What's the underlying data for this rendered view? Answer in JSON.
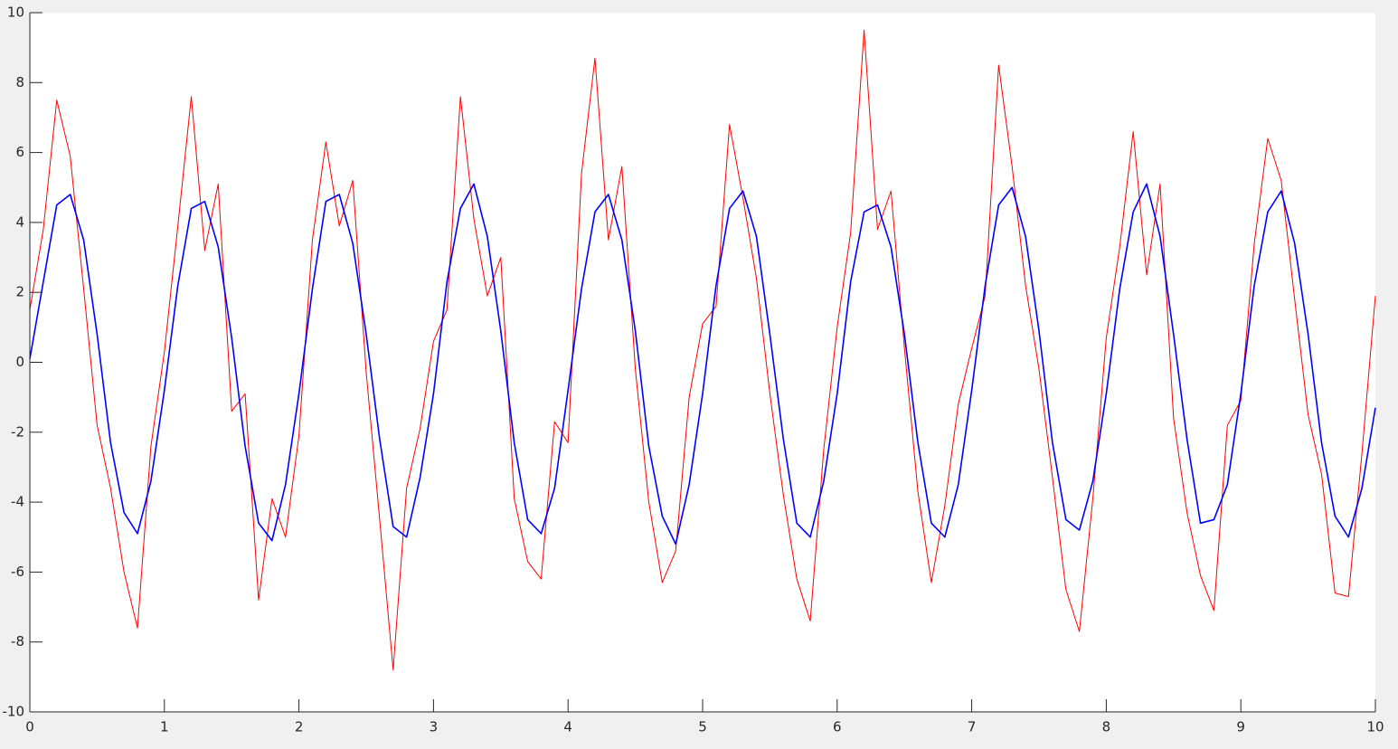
{
  "chart_data": {
    "type": "line",
    "x": [
      0,
      0.1,
      0.2,
      0.3,
      0.4,
      0.5,
      0.6,
      0.7,
      0.8,
      0.9,
      1,
      1.1,
      1.2,
      1.3,
      1.4,
      1.5,
      1.6,
      1.7,
      1.8,
      1.9,
      2,
      2.1,
      2.2,
      2.3,
      2.4,
      2.5,
      2.6,
      2.7,
      2.8,
      2.9,
      3,
      3.1,
      3.2,
      3.3,
      3.4,
      3.5,
      3.6,
      3.7,
      3.8,
      3.9,
      4,
      4.1,
      4.2,
      4.3,
      4.4,
      4.5,
      4.6,
      4.7,
      4.8,
      4.9,
      5,
      5.1,
      5.2,
      5.3,
      5.4,
      5.5,
      5.6,
      5.7,
      5.8,
      5.9,
      6,
      6.1,
      6.2,
      6.3,
      6.4,
      6.5,
      6.6,
      6.7,
      6.8,
      6.9,
      7,
      7.1,
      7.2,
      7.3,
      7.4,
      7.5,
      7.6,
      7.7,
      7.8,
      7.9,
      8,
      8.1,
      8.2,
      8.3,
      8.4,
      8.5,
      8.6,
      8.7,
      8.8,
      8.9,
      9,
      9.1,
      9.2,
      9.3,
      9.4,
      9.5,
      9.6,
      9.7,
      9.8,
      9.9,
      10
    ],
    "series": [
      {
        "color": "#ff0000",
        "values": [
          1.5,
          3.8,
          7.5,
          5.9,
          2.1,
          -1.8,
          -3.6,
          -6.0,
          -7.6,
          -2.4,
          0.3,
          3.9,
          7.6,
          3.2,
          5.1,
          -1.4,
          -0.9,
          -6.8,
          -3.9,
          -5.0,
          -2.1,
          3.5,
          6.3,
          3.9,
          5.2,
          -0.3,
          -4.5,
          -8.8,
          -3.6,
          -1.9,
          0.6,
          1.5,
          7.6,
          4.1,
          1.9,
          3.0,
          -3.9,
          -5.7,
          -6.2,
          -1.7,
          -2.3,
          5.4,
          8.7,
          3.5,
          5.6,
          -0.2,
          -4.0,
          -6.3,
          -5.4,
          -1.0,
          1.1,
          1.6,
          6.8,
          4.7,
          2.4,
          -0.9,
          -3.8,
          -6.2,
          -7.4,
          -2.5,
          1.0,
          3.7,
          9.5,
          3.8,
          4.9,
          0.4,
          -3.7,
          -6.3,
          -4.1,
          -1.2,
          0.4,
          1.9,
          8.5,
          5.6,
          2.2,
          -0.2,
          -3.3,
          -6.5,
          -7.7,
          -3.9,
          0.7,
          3.3,
          6.6,
          2.5,
          5.1,
          -1.6,
          -4.3,
          -6.1,
          -7.1,
          -1.8,
          -1.1,
          3.4,
          6.4,
          5.2,
          1.8,
          -1.5,
          -3.2,
          -6.6,
          -6.7,
          -2.6,
          1.9
        ]
      },
      {
        "color": "#0000ff",
        "values": [
          0.1,
          2.3,
          4.5,
          4.8,
          3.5,
          0.8,
          -2.3,
          -4.3,
          -4.9,
          -3.4,
          -0.8,
          2.2,
          4.4,
          4.6,
          3.3,
          0.7,
          -2.4,
          -4.6,
          -5.1,
          -3.5,
          -0.9,
          2.1,
          4.6,
          4.8,
          3.4,
          0.8,
          -2.2,
          -4.7,
          -5.0,
          -3.3,
          -0.9,
          2.3,
          4.4,
          5.1,
          3.6,
          0.9,
          -2.3,
          -4.5,
          -4.9,
          -3.6,
          -0.8,
          2.1,
          4.3,
          4.8,
          3.5,
          0.9,
          -2.4,
          -4.4,
          -5.2,
          -3.5,
          -0.9,
          2.2,
          4.4,
          4.9,
          3.6,
          0.8,
          -2.2,
          -4.6,
          -5.0,
          -3.4,
          -0.9,
          2.3,
          4.3,
          4.5,
          3.3,
          0.8,
          -2.3,
          -4.6,
          -5.0,
          -3.5,
          -0.8,
          2.2,
          4.5,
          5.0,
          3.6,
          0.9,
          -2.3,
          -4.5,
          -4.8,
          -3.4,
          -0.9,
          2.1,
          4.3,
          5.1,
          3.6,
          0.8,
          -2.2,
          -4.6,
          -4.5,
          -3.5,
          -0.9,
          2.2,
          4.3,
          4.9,
          3.4,
          0.8,
          -2.3,
          -4.4,
          -5.0,
          -3.6,
          -1.3
        ]
      }
    ],
    "xlim": [
      0,
      10
    ],
    "xticks": [
      0,
      1,
      2,
      3,
      4,
      5,
      6,
      7,
      8,
      9,
      10
    ],
    "ylim": [
      -10,
      10
    ],
    "yticks": [
      -10,
      -8,
      -6,
      -4,
      -2,
      0,
      2,
      4,
      6,
      8,
      10
    ]
  }
}
